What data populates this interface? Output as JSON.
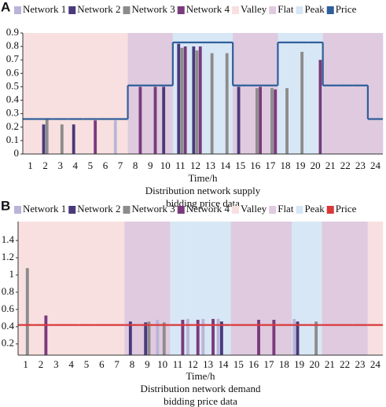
{
  "chart_data": [
    {
      "type": "bar",
      "panel_label": "A",
      "x_label": "Time/h",
      "caption": [
        "Distribution network supply",
        "bidding price data"
      ],
      "categories": [
        "1",
        "2",
        "3",
        "4",
        "5",
        "6",
        "7",
        "8",
        "9",
        "10",
        "11",
        "12",
        "13",
        "14",
        "15",
        "16",
        "17",
        "18",
        "19",
        "20",
        "21",
        "22",
        "23",
        "24"
      ],
      "series": [
        {
          "name": "Network 1",
          "color": "#b9b5d8",
          "values": [
            null,
            null,
            null,
            null,
            null,
            null,
            0.25,
            null,
            null,
            null,
            null,
            null,
            null,
            null,
            null,
            null,
            null,
            null,
            null,
            null,
            null,
            null,
            null,
            null
          ]
        },
        {
          "name": "Network 2",
          "color": "#4a3a7c",
          "values": [
            null,
            0.22,
            null,
            0.22,
            null,
            null,
            null,
            null,
            null,
            0.5,
            0.82,
            0.8,
            null,
            null,
            0.5,
            null,
            null,
            null,
            null,
            null,
            null,
            null,
            null,
            null
          ]
        },
        {
          "name": "Network 3",
          "color": "#8c8c8c",
          "values": [
            null,
            0.26,
            0.22,
            null,
            null,
            null,
            null,
            null,
            null,
            null,
            0.79,
            0.77,
            0.75,
            0.75,
            null,
            0.49,
            0.49,
            0.49,
            0.76,
            null,
            null,
            null,
            null,
            null
          ]
        },
        {
          "name": "Network 4",
          "color": "#7a3a7c",
          "values": [
            null,
            null,
            null,
            null,
            0.25,
            null,
            null,
            0.5,
            0.5,
            null,
            0.8,
            0.8,
            null,
            null,
            null,
            0.5,
            0.48,
            null,
            null,
            0.7,
            null,
            null,
            null,
            null
          ]
        }
      ],
      "bands": [
        {
          "name": "Valley",
          "color": "#f8e0e0"
        },
        {
          "name": "Flat",
          "color": "#dfcadf"
        },
        {
          "name": "Peak",
          "color": "#d8e7f5"
        }
      ],
      "band_of_hour": [
        0,
        0,
        0,
        0,
        0,
        0,
        0,
        1,
        1,
        1,
        2,
        2,
        2,
        2,
        1,
        1,
        1,
        2,
        2,
        2,
        1,
        1,
        1,
        1
      ],
      "price": {
        "name": "Price",
        "color": "#2e5f9a",
        "values": [
          0.26,
          0.26,
          0.26,
          0.26,
          0.26,
          0.26,
          0.26,
          0.51,
          0.51,
          0.51,
          0.83,
          0.83,
          0.83,
          0.83,
          0.51,
          0.51,
          0.51,
          0.83,
          0.83,
          0.83,
          0.51,
          0.51,
          0.51,
          0.26
        ]
      },
      "ylim": [
        0,
        0.9
      ],
      "yticks": [
        0,
        0.1,
        0.2,
        0.3,
        0.4,
        0.5,
        0.6,
        0.7,
        0.8,
        0.9
      ]
    },
    {
      "type": "bar",
      "panel_label": "B",
      "x_label": "Time/h",
      "caption": [
        "Distribution network demand",
        "bidding price data"
      ],
      "categories": [
        "1",
        "2",
        "3",
        "4",
        "5",
        "6",
        "7",
        "8",
        "9",
        "10",
        "11",
        "12",
        "13",
        "14",
        "15",
        "16",
        "17",
        "18",
        "19",
        "20",
        "21",
        "22",
        "23",
        "24"
      ],
      "series": [
        {
          "name": "Network 1",
          "color": "#b9b5d8",
          "values": [
            null,
            null,
            null,
            null,
            null,
            null,
            null,
            null,
            null,
            0.48,
            null,
            0.49,
            0.49,
            0.49,
            null,
            null,
            null,
            null,
            0.49,
            null,
            null,
            null,
            null,
            null
          ]
        },
        {
          "name": "Network 2",
          "color": "#4a3a7c",
          "values": [
            null,
            null,
            null,
            null,
            null,
            null,
            null,
            0.46,
            0.45,
            null,
            null,
            null,
            null,
            0.46,
            null,
            null,
            null,
            null,
            0.46,
            null,
            null,
            null,
            null,
            null
          ]
        },
        {
          "name": "Network 3",
          "color": "#8c8c8c",
          "values": [
            1.08,
            null,
            null,
            null,
            null,
            null,
            null,
            null,
            0.46,
            0.45,
            null,
            null,
            null,
            null,
            null,
            null,
            null,
            null,
            null,
            0.46,
            null,
            null,
            null,
            null
          ]
        },
        {
          "name": "Network 4",
          "color": "#7a3a7c",
          "values": [
            null,
            0.53,
            null,
            null,
            null,
            null,
            null,
            null,
            null,
            null,
            0.48,
            0.48,
            0.49,
            null,
            null,
            0.48,
            0.48,
            null,
            null,
            null,
            null,
            null,
            null,
            null
          ]
        }
      ],
      "bands": [
        {
          "name": "Valley",
          "color": "#f8e0e0"
        },
        {
          "name": "Flat",
          "color": "#dfcadf"
        },
        {
          "name": "Peak",
          "color": "#d8e7f5"
        }
      ],
      "band_of_hour": [
        0,
        0,
        0,
        0,
        0,
        0,
        0,
        1,
        1,
        1,
        2,
        2,
        2,
        2,
        1,
        1,
        1,
        1,
        2,
        2,
        1,
        1,
        1,
        0
      ],
      "price": {
        "name": "Price",
        "color": "#d9383a",
        "values": [
          0.42,
          0.42,
          0.42,
          0.42,
          0.42,
          0.42,
          0.42,
          0.42,
          0.42,
          0.42,
          0.42,
          0.42,
          0.42,
          0.42,
          0.42,
          0.42,
          0.42,
          0.42,
          0.42,
          0.42,
          0.42,
          0.42,
          0.42,
          0.42
        ]
      },
      "ylim": [
        0.07,
        1.62
      ],
      "yticks": [
        0.2,
        0.4,
        0.6,
        0.8,
        1,
        1.2,
        1.4
      ]
    }
  ]
}
